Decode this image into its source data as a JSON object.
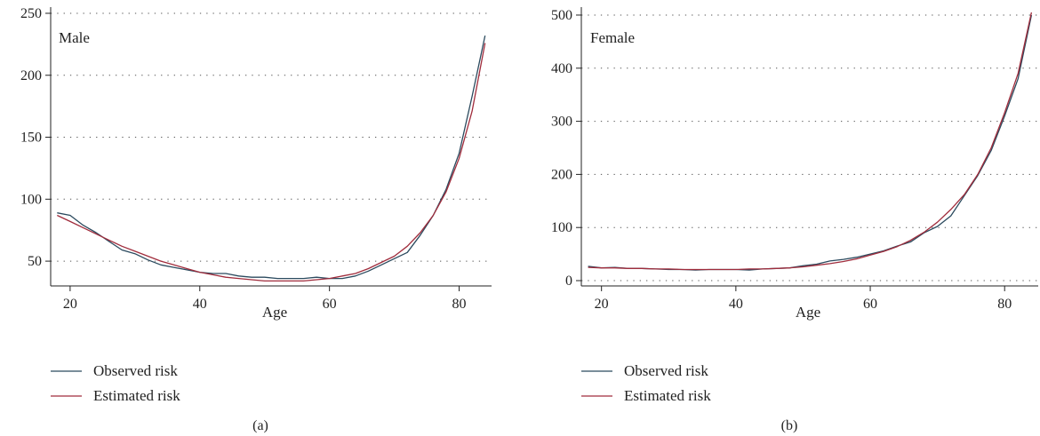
{
  "chart_data": [
    {
      "type": "line",
      "panel_label": "Male",
      "caption": "(a)",
      "xlabel": "Age",
      "ylabel": "",
      "xlim": [
        17,
        85
      ],
      "ylim": [
        30,
        255
      ],
      "xticks": [
        20,
        40,
        60,
        80
      ],
      "yticks": [
        50,
        100,
        150,
        200,
        250
      ],
      "grid": "horizontal-dotted",
      "legend_position": "bottom-left",
      "series": [
        {
          "name": "Observed risk",
          "color": "#2b4a5e",
          "x": [
            18,
            20,
            22,
            24,
            26,
            28,
            30,
            32,
            34,
            36,
            38,
            40,
            42,
            44,
            46,
            48,
            50,
            52,
            54,
            56,
            58,
            60,
            62,
            64,
            66,
            68,
            70,
            72,
            74,
            76,
            78,
            80,
            82,
            84
          ],
          "y": [
            89,
            87,
            79,
            73,
            66,
            59,
            56,
            51,
            47,
            45,
            43,
            41,
            40,
            40,
            38,
            37,
            37,
            36,
            36,
            36,
            37,
            36,
            36,
            38,
            42,
            47,
            52,
            57,
            71,
            87,
            108,
            137,
            183,
            232
          ]
        },
        {
          "name": "Estimated risk",
          "color": "#a02c3c",
          "x": [
            18,
            20,
            22,
            24,
            26,
            28,
            30,
            32,
            34,
            36,
            38,
            40,
            42,
            44,
            46,
            48,
            50,
            52,
            54,
            56,
            58,
            60,
            62,
            64,
            66,
            68,
            70,
            72,
            74,
            76,
            78,
            80,
            82,
            84
          ],
          "y": [
            87,
            82,
            77,
            72,
            67,
            62,
            58,
            54,
            50,
            47,
            44,
            41,
            39,
            37,
            36,
            35,
            34,
            34,
            34,
            34,
            35,
            36,
            38,
            40,
            44,
            49,
            54,
            62,
            73,
            87,
            106,
            133,
            171,
            226
          ]
        }
      ]
    },
    {
      "type": "line",
      "panel_label": "Female",
      "caption": "(b)",
      "xlabel": "Age",
      "ylabel": "",
      "xlim": [
        17,
        85
      ],
      "ylim": [
        -10,
        515
      ],
      "xticks": [
        20,
        40,
        60,
        80
      ],
      "yticks": [
        0,
        100,
        200,
        300,
        400,
        500
      ],
      "grid": "horizontal-dotted",
      "legend_position": "bottom-left",
      "series": [
        {
          "name": "Observed risk",
          "color": "#2b4a5e",
          "x": [
            18,
            20,
            22,
            24,
            26,
            28,
            30,
            32,
            34,
            36,
            38,
            40,
            42,
            44,
            46,
            48,
            50,
            52,
            54,
            56,
            58,
            60,
            62,
            64,
            66,
            68,
            70,
            72,
            74,
            76,
            78,
            80,
            82,
            84
          ],
          "y": [
            27,
            24,
            25,
            23,
            23,
            22,
            21,
            21,
            20,
            21,
            21,
            21,
            20,
            22,
            23,
            24,
            28,
            31,
            37,
            40,
            44,
            50,
            56,
            65,
            73,
            90,
            102,
            122,
            160,
            198,
            245,
            310,
            380,
            500
          ]
        },
        {
          "name": "Estimated risk",
          "color": "#a02c3c",
          "x": [
            18,
            20,
            22,
            24,
            26,
            28,
            30,
            32,
            34,
            36,
            38,
            40,
            42,
            44,
            46,
            48,
            50,
            52,
            54,
            56,
            58,
            60,
            62,
            64,
            66,
            68,
            70,
            72,
            74,
            76,
            78,
            80,
            82,
            84
          ],
          "y": [
            25,
            24,
            24,
            23,
            23,
            22,
            22,
            21,
            21,
            21,
            21,
            21,
            22,
            22,
            23,
            24,
            26,
            29,
            32,
            36,
            41,
            48,
            55,
            64,
            76,
            91,
            110,
            134,
            162,
            200,
            250,
            316,
            390,
            505
          ]
        }
      ]
    }
  ]
}
